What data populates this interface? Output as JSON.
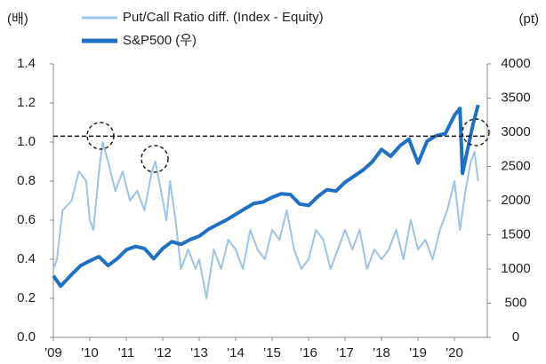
{
  "chart_data": {
    "type": "line",
    "y_label": "(배)",
    "y2_label": "(pt)",
    "xlim": [
      2009,
      2020.9
    ],
    "xticks": [
      {
        "value": 2009,
        "label": "'09"
      },
      {
        "value": 2010,
        "label": "'10"
      },
      {
        "value": 2011,
        "label": "'11"
      },
      {
        "value": 2012,
        "label": "'12"
      },
      {
        "value": 2013,
        "label": "'13"
      },
      {
        "value": 2014,
        "label": "'14"
      },
      {
        "value": 2015,
        "label": "'15"
      },
      {
        "value": 2016,
        "label": "'16"
      },
      {
        "value": 2017,
        "label": "'17"
      },
      {
        "value": 2018,
        "label": "'18"
      },
      {
        "value": 2019,
        "label": "'19"
      },
      {
        "value": 2020,
        "label": "'20"
      }
    ],
    "ylim": [
      0,
      1.4
    ],
    "yticks": [
      {
        "value": 0,
        "label": "0.0"
      },
      0.2,
      0.4,
      0.6,
      0.8,
      {
        "value": 1,
        "label": "1.0"
      },
      1.2,
      1.4
    ],
    "y2lim": [
      0,
      4000
    ],
    "y2ticks": [
      0,
      500,
      1000,
      1500,
      2000,
      2500,
      3000,
      3500,
      4000
    ],
    "reference_line": 1.03,
    "series": [
      {
        "name": "Put/Call Ratio diff. (Index - Equity)",
        "color": "#9dc3e6",
        "axis": "y",
        "x": [
          2009.0,
          2009.1,
          2009.25,
          2009.5,
          2009.7,
          2009.9,
          2010.0,
          2010.1,
          2010.25,
          2010.35,
          2010.5,
          2010.7,
          2010.9,
          2011.1,
          2011.3,
          2011.5,
          2011.7,
          2011.8,
          2011.95,
          2012.1,
          2012.2,
          2012.35,
          2012.5,
          2012.7,
          2012.9,
          2013.0,
          2013.2,
          2013.4,
          2013.6,
          2013.8,
          2014.0,
          2014.2,
          2014.4,
          2014.6,
          2014.8,
          2015.0,
          2015.2,
          2015.4,
          2015.6,
          2015.8,
          2016.0,
          2016.2,
          2016.4,
          2016.6,
          2016.8,
          2017.0,
          2017.2,
          2017.4,
          2017.6,
          2017.8,
          2018.0,
          2018.2,
          2018.4,
          2018.6,
          2018.8,
          2019.0,
          2019.2,
          2019.4,
          2019.6,
          2019.8,
          2020.0,
          2020.15,
          2020.3,
          2020.45,
          2020.55,
          2020.65
        ],
        "values": [
          0.35,
          0.4,
          0.65,
          0.7,
          0.85,
          0.8,
          0.6,
          0.55,
          0.85,
          1.0,
          0.9,
          0.75,
          0.85,
          0.7,
          0.75,
          0.65,
          0.85,
          0.9,
          0.75,
          0.6,
          0.8,
          0.6,
          0.35,
          0.45,
          0.35,
          0.4,
          0.2,
          0.45,
          0.35,
          0.5,
          0.45,
          0.35,
          0.55,
          0.45,
          0.4,
          0.55,
          0.5,
          0.65,
          0.45,
          0.35,
          0.4,
          0.55,
          0.5,
          0.35,
          0.45,
          0.55,
          0.45,
          0.55,
          0.35,
          0.45,
          0.4,
          0.45,
          0.55,
          0.4,
          0.6,
          0.45,
          0.5,
          0.4,
          0.55,
          0.65,
          0.8,
          0.55,
          0.75,
          0.9,
          0.95,
          0.8
        ]
      },
      {
        "name": "S&P500 (우)",
        "color": "#1f6fc4",
        "axis": "y2",
        "x": [
          2009.0,
          2009.2,
          2009.5,
          2009.75,
          2010.0,
          2010.25,
          2010.5,
          2010.75,
          2011.0,
          2011.25,
          2011.5,
          2011.75,
          2012.0,
          2012.25,
          2012.5,
          2012.75,
          2013.0,
          2013.25,
          2013.5,
          2013.75,
          2014.0,
          2014.25,
          2014.5,
          2014.75,
          2015.0,
          2015.25,
          2015.5,
          2015.75,
          2016.0,
          2016.25,
          2016.5,
          2016.75,
          2017.0,
          2017.25,
          2017.5,
          2017.75,
          2018.0,
          2018.25,
          2018.5,
          2018.75,
          2019.0,
          2019.25,
          2019.5,
          2019.75,
          2020.0,
          2020.15,
          2020.22,
          2020.5,
          2020.65
        ],
        "values": [
          900,
          750,
          920,
          1050,
          1120,
          1180,
          1050,
          1150,
          1280,
          1330,
          1300,
          1150,
          1300,
          1400,
          1360,
          1430,
          1480,
          1580,
          1650,
          1720,
          1800,
          1880,
          1960,
          1980,
          2050,
          2100,
          2090,
          1950,
          1930,
          2060,
          2160,
          2140,
          2270,
          2360,
          2450,
          2570,
          2750,
          2650,
          2800,
          2900,
          2550,
          2870,
          2950,
          2980,
          3250,
          3350,
          2400,
          3100,
          3400
        ]
      }
    ]
  }
}
